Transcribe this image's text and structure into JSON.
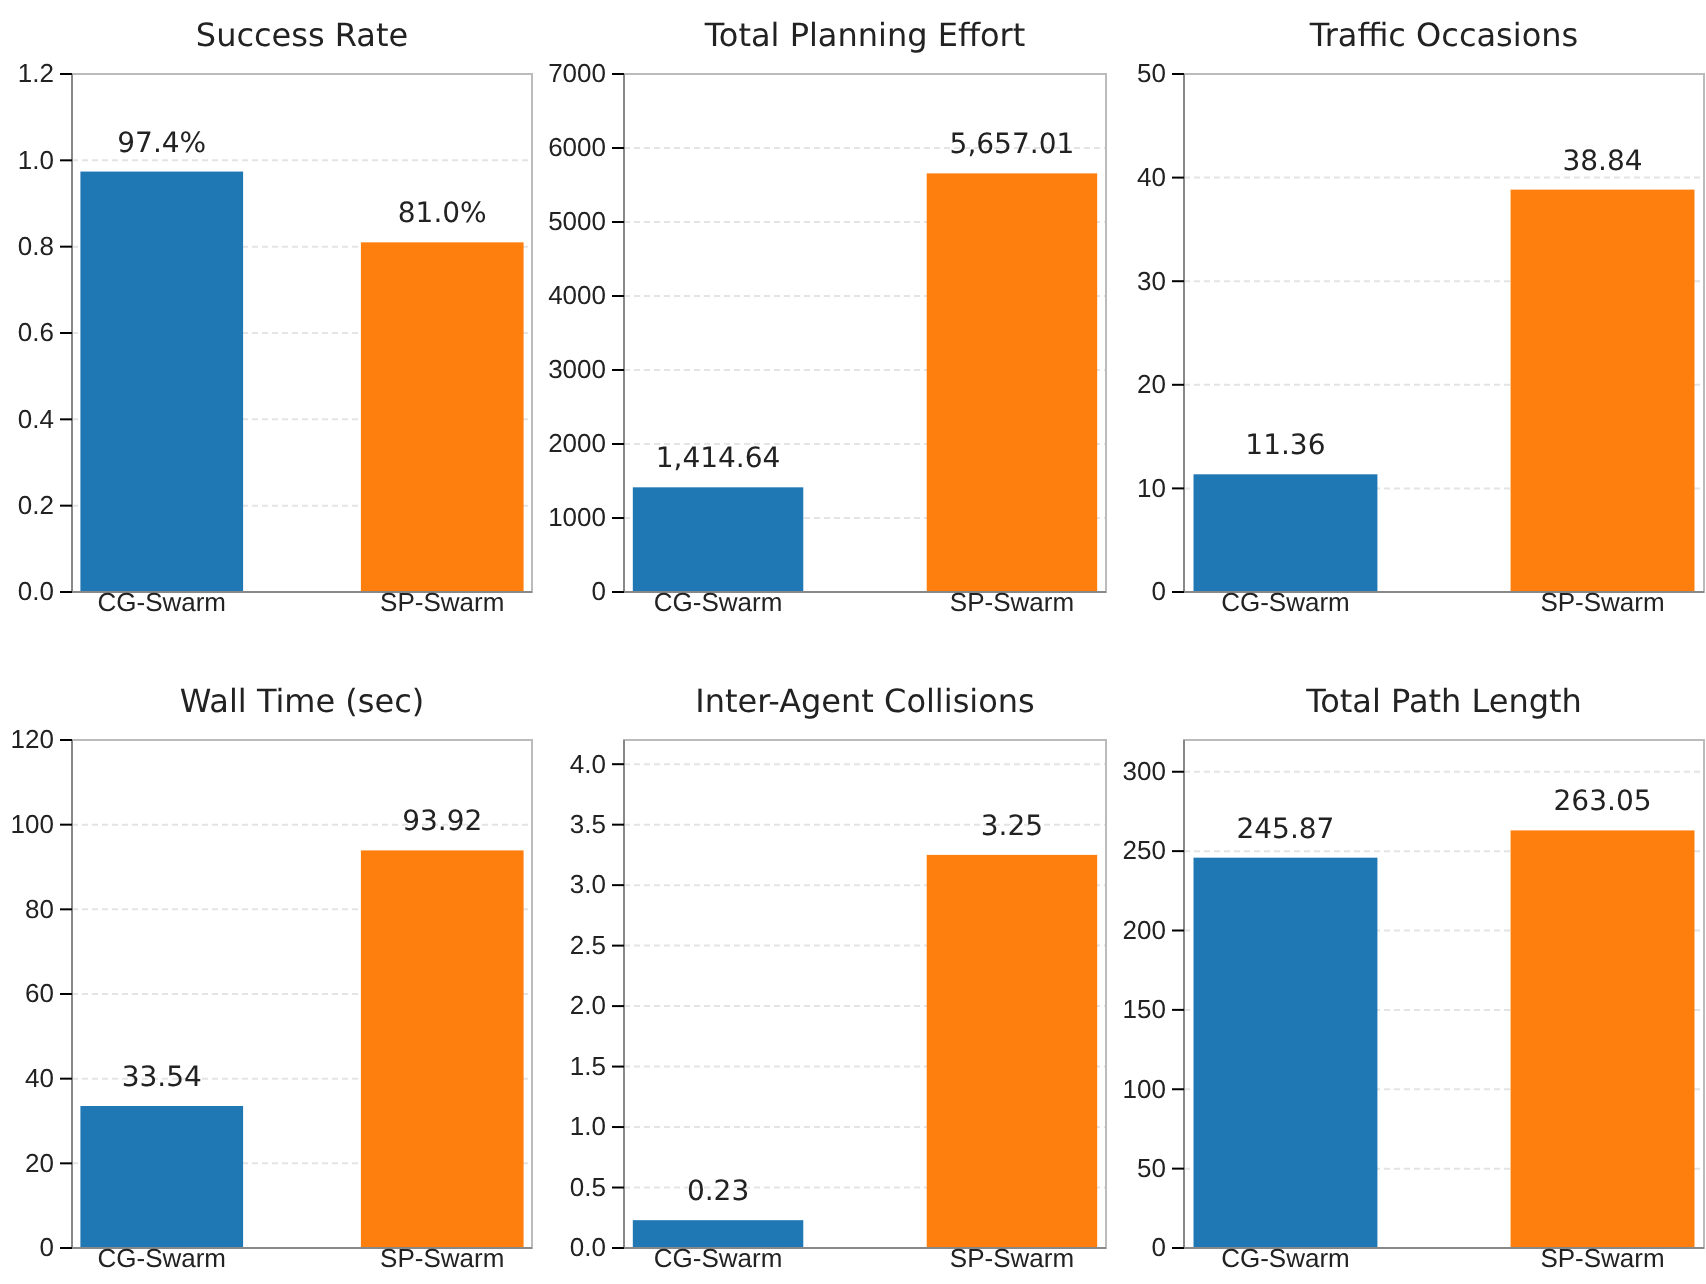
{
  "chart_data": [
    {
      "type": "bar",
      "title": "Success Rate",
      "categories": [
        "CG-Swarm",
        "SP-Swarm"
      ],
      "values": [
        0.974,
        0.81
      ],
      "colors": [
        "#1f77b4",
        "#ff7f0e"
      ],
      "value_labels": [
        "97.4%",
        "81.0%"
      ],
      "ylim": [
        0,
        1.2
      ],
      "yticks": [
        {
          "value": 0,
          "label": "0.0"
        },
        {
          "value": 0.2,
          "label": "0.2"
        },
        {
          "value": 0.4,
          "label": "0.4"
        },
        {
          "value": 0.6,
          "label": "0.6"
        },
        {
          "value": 0.8,
          "label": "0.8"
        },
        {
          "value": 1,
          "label": "1.0"
        },
        {
          "value": 1.2,
          "label": "1.2"
        }
      ],
      "grid": "y"
    },
    {
      "type": "bar",
      "title": "Total Planning Effort",
      "categories": [
        "CG-Swarm",
        "SP-Swarm"
      ],
      "values": [
        1414.64,
        5657.01
      ],
      "colors": [
        "#1f77b4",
        "#ff7f0e"
      ],
      "value_labels": [
        "1,414.64",
        "5,657.01"
      ],
      "ylim": [
        0,
        7000
      ],
      "yticks": [
        0,
        1000,
        2000,
        3000,
        4000,
        5000,
        6000,
        7000
      ],
      "grid": "y"
    },
    {
      "type": "bar",
      "title": "Traffic Occasions",
      "categories": [
        "CG-Swarm",
        "SP-Swarm"
      ],
      "values": [
        11.36,
        38.84
      ],
      "colors": [
        "#1f77b4",
        "#ff7f0e"
      ],
      "value_labels": [
        "11.36",
        "38.84"
      ],
      "ylim": [
        0,
        50
      ],
      "yticks": [
        0,
        10,
        20,
        30,
        40,
        50
      ],
      "grid": "y"
    },
    {
      "type": "bar",
      "title": "Wall Time (sec)",
      "categories": [
        "CG-Swarm",
        "SP-Swarm"
      ],
      "values": [
        33.54,
        93.92
      ],
      "colors": [
        "#1f77b4",
        "#ff7f0e"
      ],
      "value_labels": [
        "33.54",
        "93.92"
      ],
      "ylim": [
        0,
        120
      ],
      "yticks": [
        0,
        20,
        40,
        60,
        80,
        100,
        120
      ],
      "grid": "y"
    },
    {
      "type": "bar",
      "title": "Inter-Agent Collisions",
      "categories": [
        "CG-Swarm",
        "SP-Swarm"
      ],
      "values": [
        0.23,
        3.25
      ],
      "colors": [
        "#1f77b4",
        "#ff7f0e"
      ],
      "value_labels": [
        "0.23",
        "3.25"
      ],
      "ylim": [
        0,
        4.2
      ],
      "yticks": [
        {
          "value": 0,
          "label": "0.0"
        },
        {
          "value": 0.5,
          "label": "0.5"
        },
        {
          "value": 1,
          "label": "1.0"
        },
        {
          "value": 1.5,
          "label": "1.5"
        },
        {
          "value": 2,
          "label": "2.0"
        },
        {
          "value": 2.5,
          "label": "2.5"
        },
        {
          "value": 3,
          "label": "3.0"
        },
        {
          "value": 3.5,
          "label": "3.5"
        },
        {
          "value": 4,
          "label": "4.0"
        }
      ],
      "grid": "y"
    },
    {
      "type": "bar",
      "title": "Total Path Length",
      "categories": [
        "CG-Swarm",
        "SP-Swarm"
      ],
      "values": [
        245.87,
        263.05
      ],
      "colors": [
        "#1f77b4",
        "#ff7f0e"
      ],
      "value_labels": [
        "245.87",
        "263.05"
      ],
      "ylim": [
        0,
        320
      ],
      "yticks": [
        0,
        50,
        100,
        150,
        200,
        250,
        300
      ],
      "grid": "y"
    }
  ]
}
